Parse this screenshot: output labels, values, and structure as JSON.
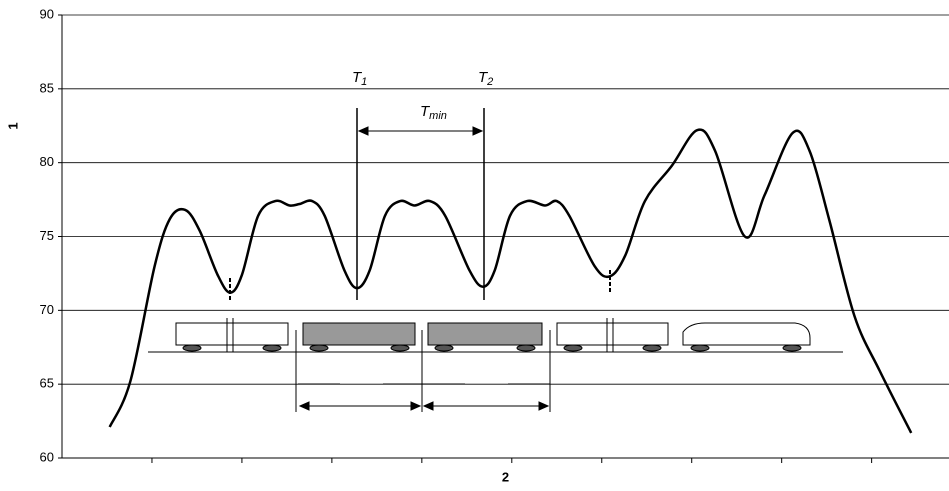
{
  "chart_data": {
    "type": "line",
    "x_label": "2",
    "y_label": "1",
    "xlim": [
      0,
      9.86
    ],
    "xticks": [
      1,
      2,
      3,
      4,
      5,
      6,
      7,
      8,
      9
    ],
    "ylim": [
      60,
      90
    ],
    "yticks": [
      60,
      65,
      70,
      75,
      80,
      85,
      90
    ],
    "grid": true,
    "color": "#000000",
    "x": [
      0.53,
      0.76,
      1.03,
      1.2,
      1.37,
      1.53,
      1.73,
      1.87,
      2.0,
      2.18,
      2.37,
      2.53,
      2.64,
      2.78,
      2.92,
      3.14,
      3.28,
      3.42,
      3.59,
      3.76,
      3.92,
      4.09,
      4.26,
      4.53,
      4.68,
      4.81,
      4.98,
      5.17,
      5.37,
      5.5,
      5.64,
      5.92,
      6.09,
      6.26,
      6.48,
      6.78,
      7.06,
      7.26,
      7.59,
      7.81,
      8.12,
      8.31,
      8.53,
      8.81,
      9.09,
      9.44
    ],
    "values": [
      62.1,
      65.2,
      73.0,
      76.2,
      76.8,
      75.4,
      72.4,
      71.2,
      72.4,
      76.4,
      77.4,
      77.1,
      77.2,
      77.4,
      76.4,
      72.7,
      71.5,
      72.7,
      76.4,
      77.4,
      77.1,
      77.4,
      76.4,
      72.7,
      71.6,
      72.7,
      76.4,
      77.4,
      77.1,
      77.4,
      76.4,
      73.0,
      72.3,
      73.7,
      77.4,
      79.8,
      82.2,
      80.8,
      75.0,
      77.8,
      82.0,
      80.8,
      76.1,
      69.6,
      65.9,
      61.7
    ],
    "annotations": [
      {
        "text": "T",
        "sub": "1"
      },
      {
        "text": "T",
        "sub": "2"
      },
      {
        "text": "T",
        "sub": "min"
      }
    ]
  }
}
